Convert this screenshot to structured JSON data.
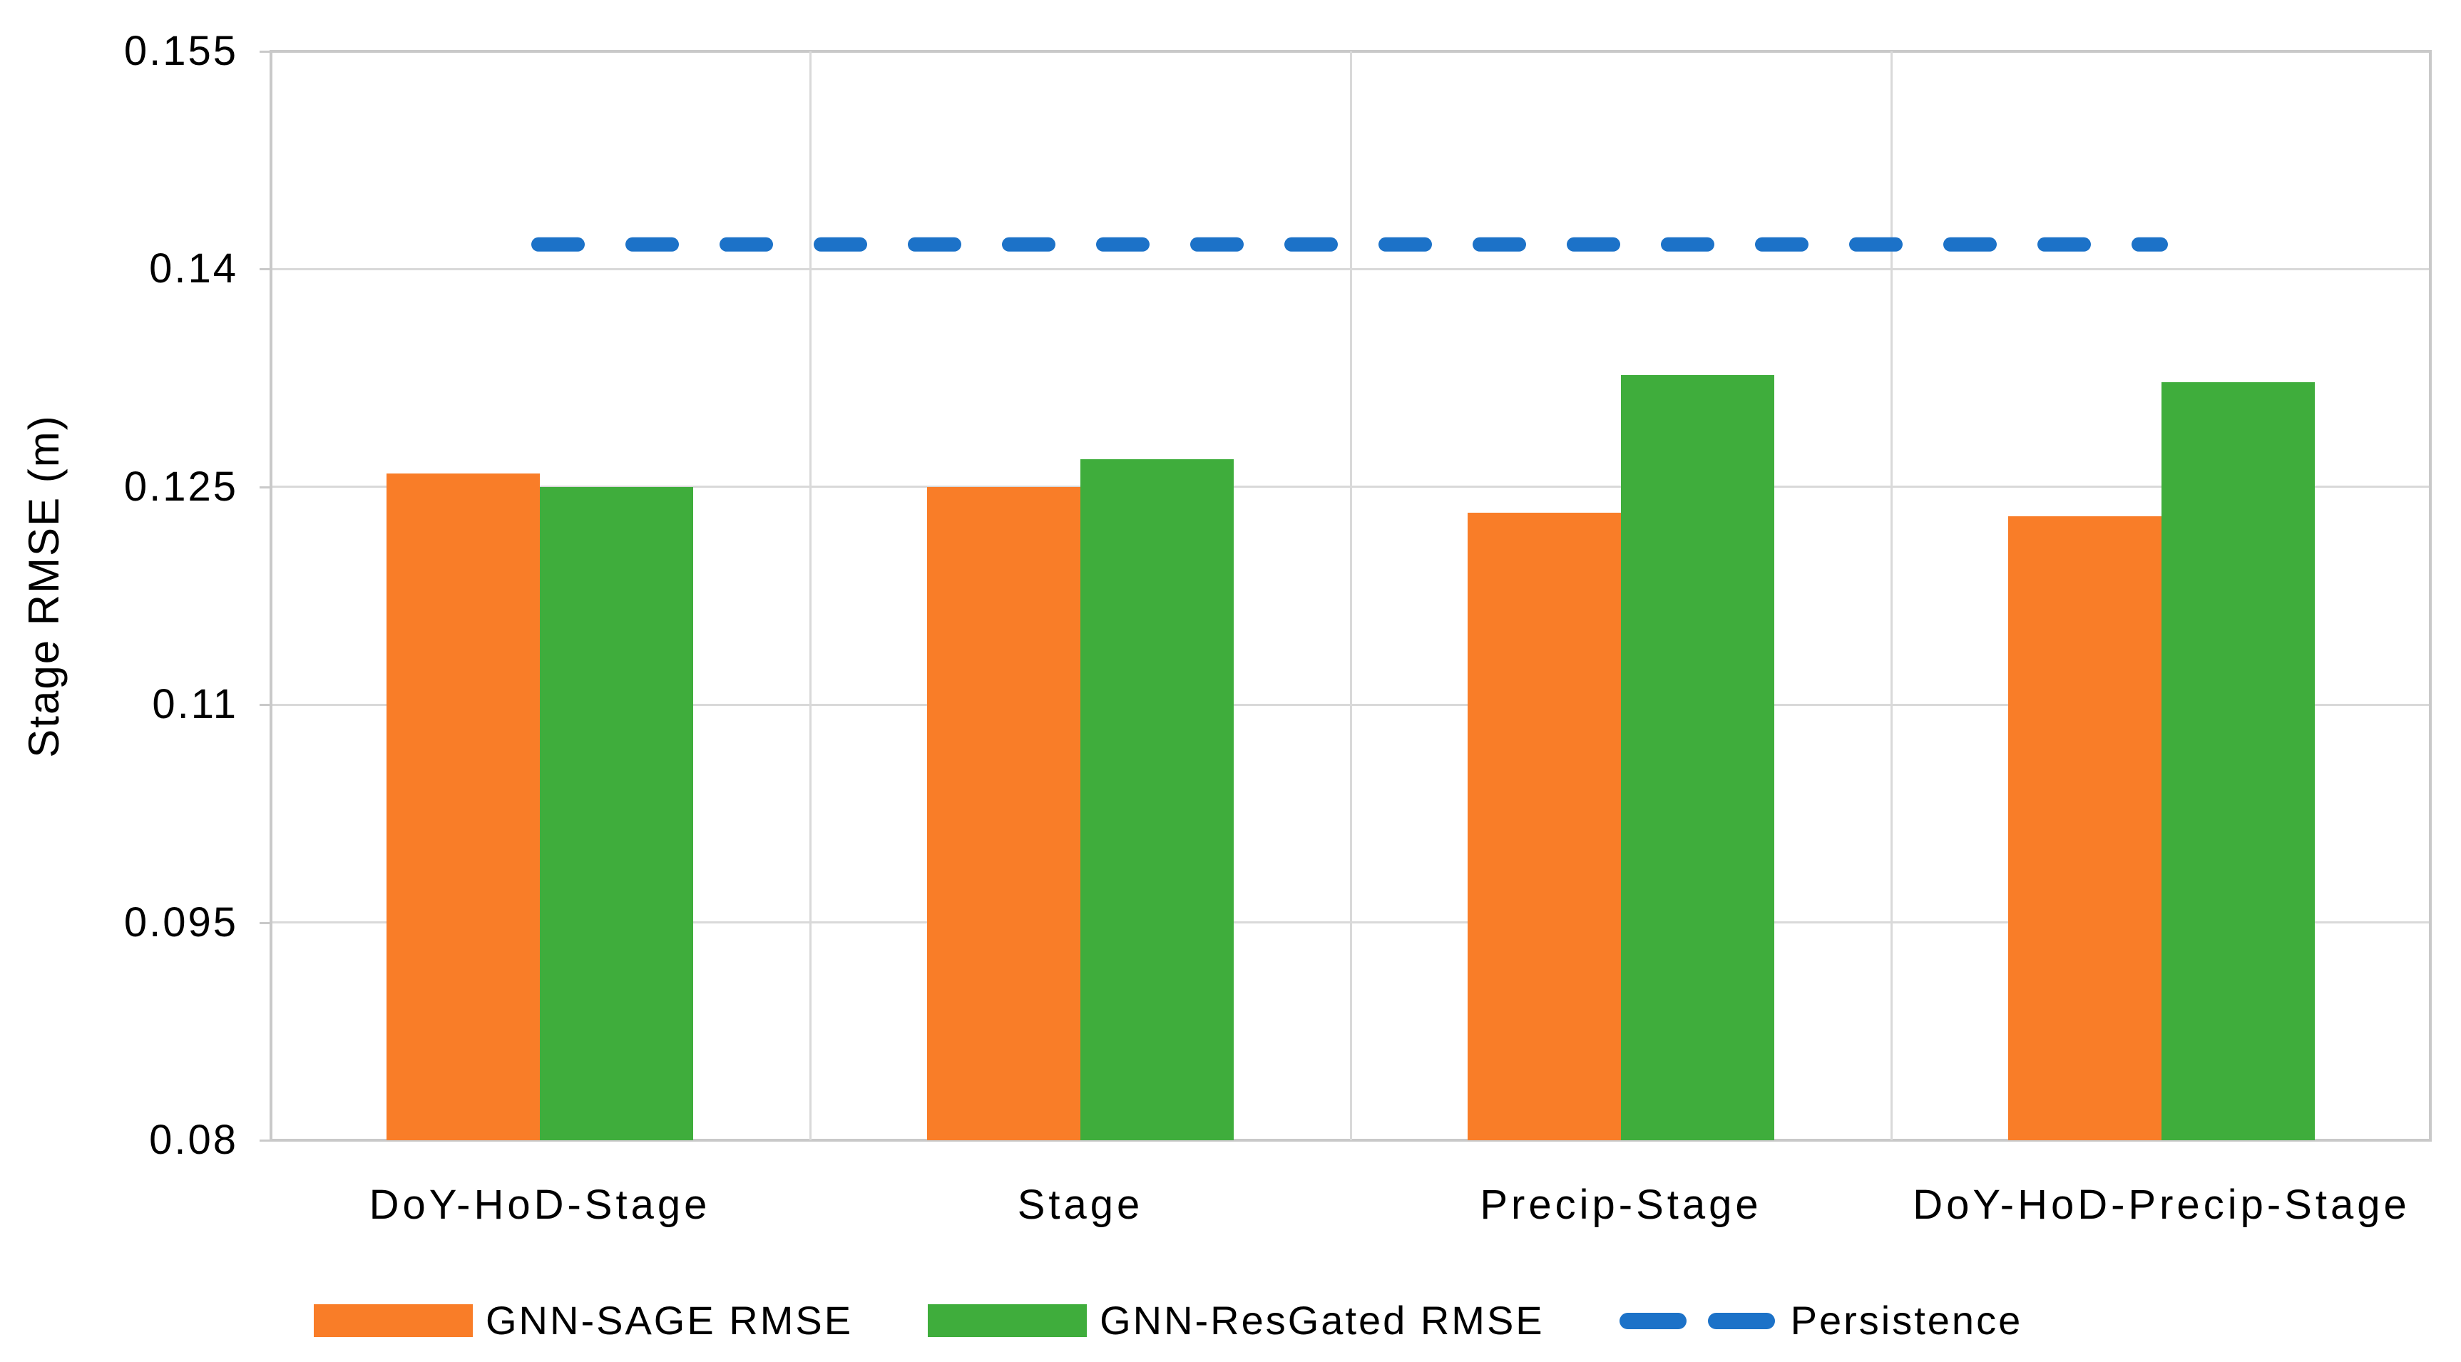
{
  "chart_data": {
    "type": "bar",
    "title": "",
    "ylabel": "Stage RMSE (m)",
    "xlabel": "",
    "categories": [
      "DoY-HoD-Stage",
      "Stage",
      "Precip-Stage",
      "DoY-HoD-Precip-Stage"
    ],
    "series": [
      {
        "name": "GNN-SAGE RMSE",
        "color": "#F97D28",
        "values": [
          0.1259,
          0.125,
          0.1232,
          0.123
        ]
      },
      {
        "name": "GNN-ResGated RMSE",
        "color": "#3FAD3C",
        "values": [
          0.125,
          0.1269,
          0.1327,
          0.1322
        ]
      }
    ],
    "reference_line": {
      "name": "Persistence",
      "color": "#1C72C8",
      "style": "dashed",
      "value": 0.1417
    },
    "ylim": [
      0.08,
      0.155
    ],
    "y_ticks": [
      0.08,
      0.095,
      0.11,
      0.125,
      0.14,
      0.155
    ],
    "y_tick_labels": [
      "0.08",
      "0.095",
      "0.11",
      "0.125",
      "0.14",
      "0.155"
    ],
    "grid": true,
    "legend_position": "bottom",
    "legend": [
      {
        "label": "GNN-SAGE RMSE",
        "swatch": "bar",
        "color": "#F97D28"
      },
      {
        "label": "GNN-ResGated RMSE",
        "swatch": "bar",
        "color": "#3FAD3C"
      },
      {
        "label": "Persistence",
        "swatch": "dash",
        "color": "#1C72C8"
      }
    ]
  },
  "colors": {
    "background": "#FFFFFF",
    "gridline": "#D9D9D9",
    "axis_border": "#C9C9C9",
    "text": "#000000"
  }
}
